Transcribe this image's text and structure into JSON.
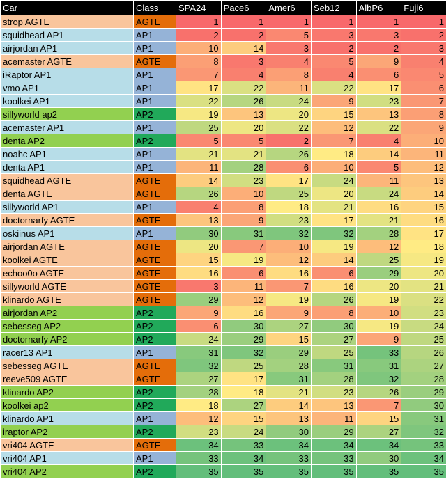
{
  "headers": [
    "Car",
    "Class",
    "SPA24",
    "Pace6",
    "Amer6",
    "Seb12",
    "AlbP6",
    "Fuji6"
  ],
  "class_colors": {
    "AGTE": {
      "car": "#f9c59c",
      "class": "#e46d0a"
    },
    "AP1": {
      "car": "#b7dde8",
      "class": "#95b3d7"
    },
    "AP2": {
      "car": "#92d050",
      "class": "#21a95a"
    }
  },
  "heatmap_colors": {
    "low": "#f8696b",
    "mid": "#ffeb84",
    "high": "#63be7b"
  },
  "rows": [
    {
      "car": "strop AGTE",
      "class": "AGTE",
      "values": [
        1,
        1,
        1,
        1,
        1,
        1
      ]
    },
    {
      "car": "squidhead AP1",
      "class": "AP1",
      "values": [
        2,
        2,
        5,
        3,
        3,
        2
      ]
    },
    {
      "car": "airjordan AP1",
      "class": "AP1",
      "values": [
        10,
        14,
        3,
        2,
        2,
        3
      ]
    },
    {
      "car": "acemaster AGTE",
      "class": "AGTE",
      "values": [
        8,
        3,
        4,
        5,
        9,
        4
      ]
    },
    {
      "car": "iRaptor AP1",
      "class": "AP1",
      "values": [
        7,
        4,
        8,
        4,
        6,
        5
      ]
    },
    {
      "car": "vmo AP1",
      "class": "AP1",
      "values": [
        17,
        22,
        11,
        22,
        17,
        6
      ]
    },
    {
      "car": "koolkei AP1",
      "class": "AP1",
      "values": [
        22,
        26,
        24,
        9,
        23,
        7
      ]
    },
    {
      "car": "sillyworld ap2",
      "class": "AP2",
      "values": [
        19,
        13,
        20,
        15,
        13,
        8
      ]
    },
    {
      "car": "acemaster AP1",
      "class": "AP1",
      "values": [
        25,
        20,
        22,
        12,
        22,
        9
      ]
    },
    {
      "car": "denta AP2",
      "class": "AP2",
      "values": [
        5,
        5,
        2,
        7,
        4,
        10
      ]
    },
    {
      "car": "noahc AP1",
      "class": "AP1",
      "values": [
        21,
        21,
        26,
        18,
        14,
        11
      ]
    },
    {
      "car": "denta AP1",
      "class": "AP1",
      "values": [
        11,
        28,
        6,
        10,
        5,
        12
      ]
    },
    {
      "car": "squidhead AGTE",
      "class": "AGTE",
      "values": [
        14,
        23,
        17,
        24,
        11,
        13
      ]
    },
    {
      "car": "denta AGTE",
      "class": "AGTE",
      "values": [
        26,
        10,
        25,
        20,
        24,
        14
      ]
    },
    {
      "car": "sillyworld AP1",
      "class": "AP1",
      "values": [
        4,
        8,
        18,
        21,
        16,
        15
      ]
    },
    {
      "car": "doctornarfy AGTE",
      "class": "AGTE",
      "values": [
        13,
        9,
        23,
        17,
        21,
        16
      ]
    },
    {
      "car": "oskiinus AP1",
      "class": "AP1",
      "values": [
        30,
        31,
        32,
        32,
        28,
        17
      ]
    },
    {
      "car": "airjordan AGTE",
      "class": "AGTE",
      "values": [
        20,
        7,
        10,
        19,
        12,
        18
      ]
    },
    {
      "car": "koolkei AGTE",
      "class": "AGTE",
      "values": [
        15,
        19,
        12,
        14,
        25,
        19
      ]
    },
    {
      "car": "echoo0o AGTE",
      "class": "AGTE",
      "values": [
        16,
        6,
        16,
        6,
        29,
        20
      ]
    },
    {
      "car": "sillyworld AGTE",
      "class": "AGTE",
      "values": [
        3,
        11,
        7,
        16,
        20,
        21
      ]
    },
    {
      "car": "klinardo AGTE",
      "class": "AGTE",
      "values": [
        29,
        12,
        19,
        26,
        19,
        22
      ]
    },
    {
      "car": "airjordan AP2",
      "class": "AP2",
      "values": [
        9,
        16,
        9,
        8,
        10,
        23
      ]
    },
    {
      "car": "sebesseg AP2",
      "class": "AP2",
      "values": [
        6,
        30,
        27,
        30,
        19,
        24
      ]
    },
    {
      "car": "doctornarfy AP2",
      "class": "AP2",
      "values": [
        24,
        29,
        15,
        27,
        9,
        25
      ]
    },
    {
      "car": "racer13 AP1",
      "class": "AP1",
      "values": [
        31,
        32,
        29,
        25,
        33,
        26
      ]
    },
    {
      "car": "sebesseg AGTE",
      "class": "AGTE",
      "values": [
        32,
        25,
        28,
        31,
        31,
        27
      ]
    },
    {
      "car": "reeve509 AGTE",
      "class": "AGTE",
      "values": [
        27,
        17,
        31,
        28,
        32,
        28
      ]
    },
    {
      "car": "klinardo AP2",
      "class": "AP2",
      "values": [
        28,
        18,
        21,
        23,
        26,
        29
      ]
    },
    {
      "car": "koolkei ap2",
      "class": "AP2",
      "values": [
        18,
        27,
        14,
        13,
        7,
        30
      ]
    },
    {
      "car": "klinardo AP1",
      "class": "AP1",
      "values": [
        12,
        15,
        13,
        11,
        15,
        31
      ]
    },
    {
      "car": "iraptor AP2",
      "class": "AP2",
      "values": [
        23,
        24,
        30,
        29,
        27,
        32
      ]
    },
    {
      "car": "vri404 AGTE",
      "class": "AGTE",
      "values": [
        34,
        33,
        34,
        34,
        34,
        33
      ]
    },
    {
      "car": "vri404 AP1",
      "class": "AP1",
      "values": [
        33,
        34,
        33,
        33,
        30,
        34
      ]
    },
    {
      "car": "vri404 AP2",
      "class": "AP2",
      "values": [
        35,
        35,
        35,
        35,
        35,
        35
      ]
    }
  ]
}
